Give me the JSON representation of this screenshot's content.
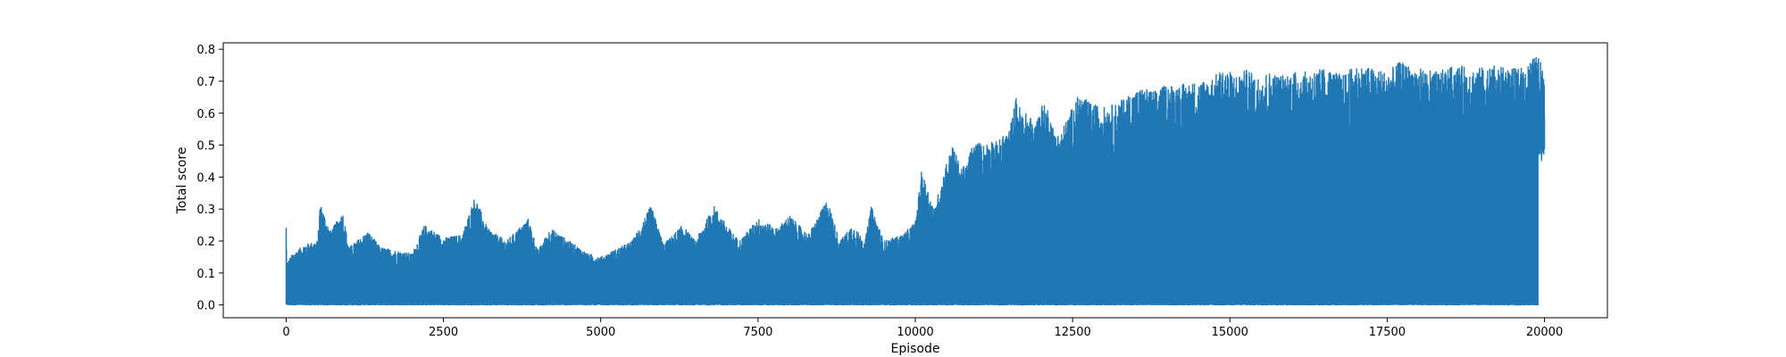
{
  "chart_data": {
    "type": "line",
    "title": "",
    "xlabel": "Episode",
    "ylabel": "Total score",
    "xlim": [
      -1000,
      21000
    ],
    "ylim": [
      -0.04,
      0.82
    ],
    "xticks": [
      0,
      2500,
      5000,
      7500,
      10000,
      12500,
      15000,
      17500,
      20000
    ],
    "xtick_labels": [
      "0",
      "2500",
      "5000",
      "7500",
      "10000",
      "12500",
      "15000",
      "17500",
      "20000"
    ],
    "yticks": [
      0.0,
      0.1,
      0.2,
      0.3,
      0.4,
      0.5,
      0.6,
      0.7,
      0.8
    ],
    "ytick_labels": [
      "0.0",
      "0.1",
      "0.2",
      "0.3",
      "0.4",
      "0.5",
      "0.6",
      "0.7",
      "0.8"
    ],
    "grid": false,
    "legend": "none",
    "series": [
      {
        "color": "#1f77b4",
        "x_range": [
          0,
          20000
        ],
        "envelope_x": [
          0,
          10,
          100,
          300,
          500,
          540,
          700,
          900,
          1000,
          1300,
          1500,
          2000,
          2200,
          2500,
          2800,
          3000,
          3200,
          3500,
          3850,
          4000,
          4200,
          4500,
          4800,
          5000,
          5500,
          5800,
          6000,
          6300,
          6500,
          6800,
          7000,
          7200,
          7500,
          7800,
          8000,
          8300,
          8600,
          8800,
          9000,
          9200,
          9300,
          9500,
          9800,
          10000,
          10100,
          10300,
          10500,
          10600,
          10700,
          10800,
          10900,
          11000,
          11100,
          11200,
          11300,
          11500,
          11600,
          11700,
          11800,
          11900,
          12000,
          12100,
          12200,
          12300,
          12400,
          12600,
          12800,
          13000,
          13200,
          13400,
          13600,
          13800,
          14000,
          14200,
          14500,
          14700,
          14900,
          15100,
          15300,
          15400,
          15600,
          15800,
          16000,
          16200,
          16500,
          16800,
          17000,
          17300,
          17500,
          17700,
          18000,
          18300,
          18600,
          18900,
          19200,
          19400,
          19600,
          19700,
          19800,
          19900,
          19950,
          20000
        ],
        "envelope_max": [
          0.24,
          0.13,
          0.16,
          0.19,
          0.2,
          0.32,
          0.23,
          0.29,
          0.18,
          0.23,
          0.18,
          0.16,
          0.25,
          0.21,
          0.22,
          0.34,
          0.24,
          0.2,
          0.27,
          0.17,
          0.24,
          0.2,
          0.16,
          0.15,
          0.2,
          0.31,
          0.19,
          0.25,
          0.2,
          0.31,
          0.25,
          0.2,
          0.27,
          0.24,
          0.28,
          0.22,
          0.33,
          0.2,
          0.25,
          0.2,
          0.31,
          0.2,
          0.22,
          0.26,
          0.42,
          0.3,
          0.45,
          0.5,
          0.44,
          0.43,
          0.5,
          0.51,
          0.5,
          0.52,
          0.51,
          0.55,
          0.65,
          0.6,
          0.6,
          0.56,
          0.63,
          0.62,
          0.55,
          0.53,
          0.58,
          0.66,
          0.63,
          0.62,
          0.63,
          0.66,
          0.68,
          0.67,
          0.69,
          0.69,
          0.7,
          0.71,
          0.74,
          0.72,
          0.74,
          0.71,
          0.73,
          0.72,
          0.73,
          0.73,
          0.74,
          0.72,
          0.75,
          0.74,
          0.73,
          0.76,
          0.74,
          0.73,
          0.75,
          0.74,
          0.75,
          0.74,
          0.74,
          0.75,
          0.77,
          0.78,
          0.76,
          0.72
        ],
        "baseline_min": [
          0.0,
          0.0
        ],
        "upper_band_start": 19900,
        "upper_band_min": 0.52
      }
    ]
  }
}
